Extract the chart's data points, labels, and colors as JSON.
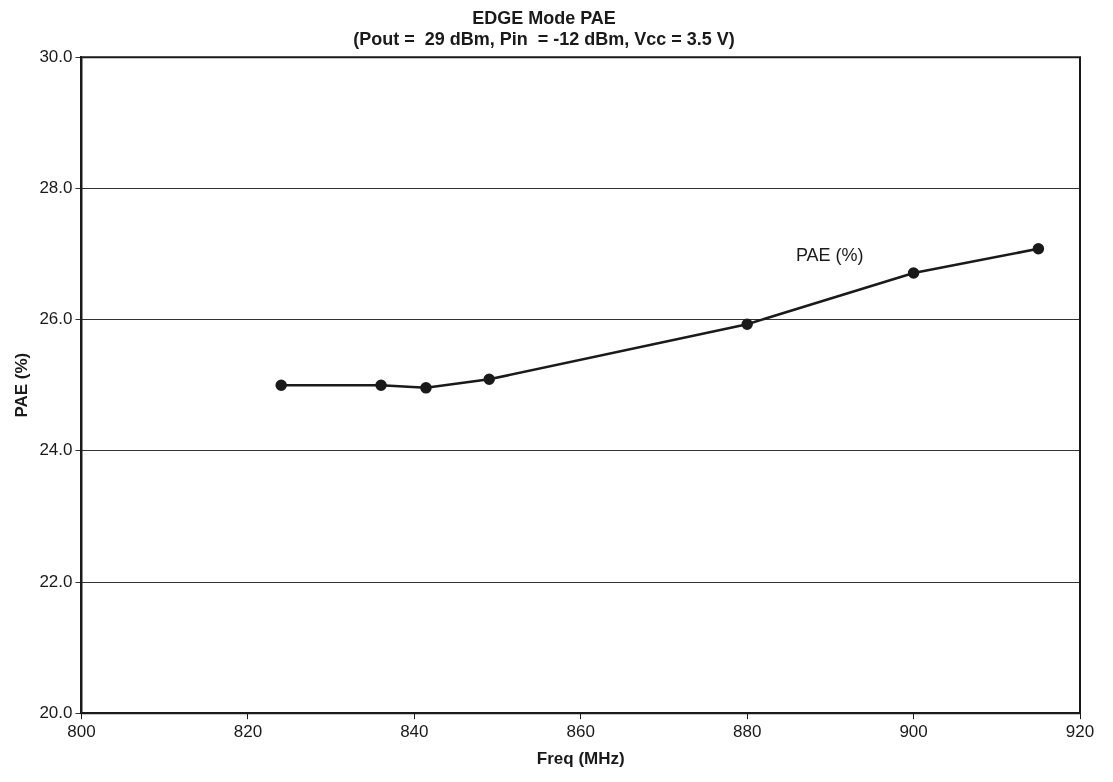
{
  "chart_data": {
    "type": "line",
    "title": [
      "EDGE Mode PAE",
      "(Pout =  29 dBm, Pin  = -12 dBm, Vcc = 3.5 V)"
    ],
    "xlabel": "Freq (MHz)",
    "ylabel": "PAE (%)",
    "x": [
      824,
      836,
      841.4,
      849,
      880,
      900,
      915
    ],
    "series": [
      {
        "name": "PAE (%)",
        "color": "#1a1a1a",
        "values": [
          25.0,
          25.0,
          24.96,
          25.09,
          25.93,
          26.71,
          27.08
        ]
      }
    ],
    "xlim": [
      800,
      920
    ],
    "xticks": [
      800,
      820,
      840,
      860,
      880,
      900,
      920
    ],
    "ylim": [
      20,
      30
    ],
    "yticks": [
      {
        "value": 20,
        "label": "20.0"
      },
      {
        "value": 22,
        "label": "22.0"
      },
      {
        "value": 24,
        "label": "24.0"
      },
      {
        "value": 26,
        "label": "26.0"
      },
      {
        "value": 28,
        "label": "28.0"
      },
      {
        "value": 30,
        "label": "30.0"
      }
    ],
    "grid": "y",
    "legend": false,
    "marker": "circle",
    "line_style": "solid"
  }
}
